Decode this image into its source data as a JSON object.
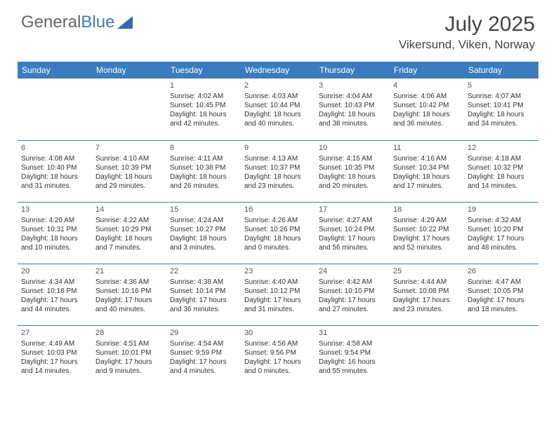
{
  "brand": {
    "part1": "General",
    "part2": "Blue"
  },
  "title": "July 2025",
  "location": "Vikersund, Viken, Norway",
  "colors": {
    "header_bg": "#3a7cbf",
    "header_fg": "#ffffff",
    "rule": "#3a7cbf",
    "text": "#333333",
    "background": "#ffffff"
  },
  "typography": {
    "title_fontsize": 30,
    "location_fontsize": 17,
    "dayheader_fontsize": 12,
    "cell_fontsize": 10
  },
  "day_headers": [
    "Sunday",
    "Monday",
    "Tuesday",
    "Wednesday",
    "Thursday",
    "Friday",
    "Saturday"
  ],
  "weeks": [
    [
      null,
      null,
      {
        "n": "1",
        "sr": "4:02 AM",
        "ss": "10:45 PM",
        "dl": "18 hours and 42 minutes."
      },
      {
        "n": "2",
        "sr": "4:03 AM",
        "ss": "10:44 PM",
        "dl": "18 hours and 40 minutes."
      },
      {
        "n": "3",
        "sr": "4:04 AM",
        "ss": "10:43 PM",
        "dl": "18 hours and 38 minutes."
      },
      {
        "n": "4",
        "sr": "4:06 AM",
        "ss": "10:42 PM",
        "dl": "18 hours and 36 minutes."
      },
      {
        "n": "5",
        "sr": "4:07 AM",
        "ss": "10:41 PM",
        "dl": "18 hours and 34 minutes."
      }
    ],
    [
      {
        "n": "6",
        "sr": "4:08 AM",
        "ss": "10:40 PM",
        "dl": "18 hours and 31 minutes."
      },
      {
        "n": "7",
        "sr": "4:10 AM",
        "ss": "10:39 PM",
        "dl": "18 hours and 29 minutes."
      },
      {
        "n": "8",
        "sr": "4:11 AM",
        "ss": "10:38 PM",
        "dl": "18 hours and 26 minutes."
      },
      {
        "n": "9",
        "sr": "4:13 AM",
        "ss": "10:37 PM",
        "dl": "18 hours and 23 minutes."
      },
      {
        "n": "10",
        "sr": "4:15 AM",
        "ss": "10:35 PM",
        "dl": "18 hours and 20 minutes."
      },
      {
        "n": "11",
        "sr": "4:16 AM",
        "ss": "10:34 PM",
        "dl": "18 hours and 17 minutes."
      },
      {
        "n": "12",
        "sr": "4:18 AM",
        "ss": "10:32 PM",
        "dl": "18 hours and 14 minutes."
      }
    ],
    [
      {
        "n": "13",
        "sr": "4:20 AM",
        "ss": "10:31 PM",
        "dl": "18 hours and 10 minutes."
      },
      {
        "n": "14",
        "sr": "4:22 AM",
        "ss": "10:29 PM",
        "dl": "18 hours and 7 minutes."
      },
      {
        "n": "15",
        "sr": "4:24 AM",
        "ss": "10:27 PM",
        "dl": "18 hours and 3 minutes."
      },
      {
        "n": "16",
        "sr": "4:26 AM",
        "ss": "10:26 PM",
        "dl": "18 hours and 0 minutes."
      },
      {
        "n": "17",
        "sr": "4:27 AM",
        "ss": "10:24 PM",
        "dl": "17 hours and 56 minutes."
      },
      {
        "n": "18",
        "sr": "4:29 AM",
        "ss": "10:22 PM",
        "dl": "17 hours and 52 minutes."
      },
      {
        "n": "19",
        "sr": "4:32 AM",
        "ss": "10:20 PM",
        "dl": "17 hours and 48 minutes."
      }
    ],
    [
      {
        "n": "20",
        "sr": "4:34 AM",
        "ss": "10:18 PM",
        "dl": "17 hours and 44 minutes."
      },
      {
        "n": "21",
        "sr": "4:36 AM",
        "ss": "10:16 PM",
        "dl": "17 hours and 40 minutes."
      },
      {
        "n": "22",
        "sr": "4:38 AM",
        "ss": "10:14 PM",
        "dl": "17 hours and 36 minutes."
      },
      {
        "n": "23",
        "sr": "4:40 AM",
        "ss": "10:12 PM",
        "dl": "17 hours and 31 minutes."
      },
      {
        "n": "24",
        "sr": "4:42 AM",
        "ss": "10:10 PM",
        "dl": "17 hours and 27 minutes."
      },
      {
        "n": "25",
        "sr": "4:44 AM",
        "ss": "10:08 PM",
        "dl": "17 hours and 23 minutes."
      },
      {
        "n": "26",
        "sr": "4:47 AM",
        "ss": "10:05 PM",
        "dl": "17 hours and 18 minutes."
      }
    ],
    [
      {
        "n": "27",
        "sr": "4:49 AM",
        "ss": "10:03 PM",
        "dl": "17 hours and 14 minutes."
      },
      {
        "n": "28",
        "sr": "4:51 AM",
        "ss": "10:01 PM",
        "dl": "17 hours and 9 minutes."
      },
      {
        "n": "29",
        "sr": "4:54 AM",
        "ss": "9:59 PM",
        "dl": "17 hours and 4 minutes."
      },
      {
        "n": "30",
        "sr": "4:56 AM",
        "ss": "9:56 PM",
        "dl": "17 hours and 0 minutes."
      },
      {
        "n": "31",
        "sr": "4:58 AM",
        "ss": "9:54 PM",
        "dl": "16 hours and 55 minutes."
      },
      null,
      null
    ]
  ],
  "labels": {
    "sunrise": "Sunrise:",
    "sunset": "Sunset:",
    "daylight": "Daylight:"
  }
}
